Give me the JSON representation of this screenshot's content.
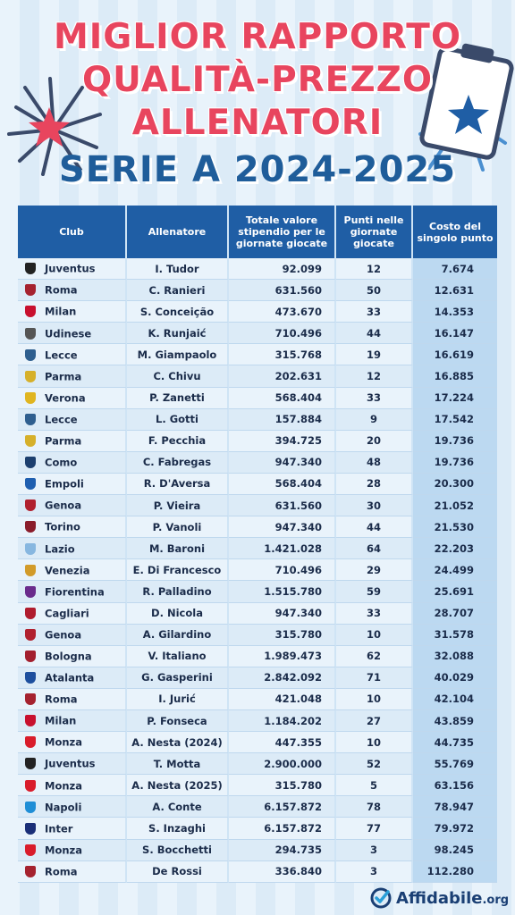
{
  "title": {
    "line1": "Miglior rapporto",
    "line2": "qualità-prezzo",
    "line3": "allenatori",
    "subtitle": "SERIE A 2024-2025"
  },
  "table": {
    "headers": {
      "club": "Club",
      "coach": "Allenatore",
      "value": "Totale valore stipendio per le giornate giocate",
      "points": "Punti nelle giornate giocate",
      "cost": "Costo del singolo punto"
    },
    "rows": [
      {
        "club": "Juventus",
        "coach": "I. Tudor",
        "value": "92.099",
        "points": "12",
        "cost": "7.674",
        "crest_color": "#222222"
      },
      {
        "club": "Roma",
        "coach": "C. Ranieri",
        "value": "631.560",
        "points": "50",
        "cost": "12.631",
        "crest_color": "#a5222f"
      },
      {
        "club": "Milan",
        "coach": "S. Conceição",
        "value": "473.670",
        "points": "33",
        "cost": "14.353",
        "crest_color": "#c8102e"
      },
      {
        "club": "Udinese",
        "coach": "K. Runjaić",
        "value": "710.496",
        "points": "44",
        "cost": "16.147",
        "crest_color": "#555555"
      },
      {
        "club": "Lecce",
        "coach": "M. Giampaolo",
        "value": "315.768",
        "points": "19",
        "cost": "16.619",
        "crest_color": "#2f5f8f"
      },
      {
        "club": "Parma",
        "coach": "C. Chivu",
        "value": "202.631",
        "points": "12",
        "cost": "16.885",
        "crest_color": "#d6b02a"
      },
      {
        "club": "Verona",
        "coach": "P. Zanetti",
        "value": "568.404",
        "points": "33",
        "cost": "17.224",
        "crest_color": "#e0b520"
      },
      {
        "club": "Lecce",
        "coach": "L. Gotti",
        "value": "157.884",
        "points": "9",
        "cost": "17.542",
        "crest_color": "#2f5f8f"
      },
      {
        "club": "Parma",
        "coach": "F. Pecchia",
        "value": "394.725",
        "points": "20",
        "cost": "19.736",
        "crest_color": "#d6b02a"
      },
      {
        "club": "Como",
        "coach": "C. Fabregas",
        "value": "947.340",
        "points": "48",
        "cost": "19.736",
        "crest_color": "#1c3f6e"
      },
      {
        "club": "Empoli",
        "coach": "R. D'Aversa",
        "value": "568.404",
        "points": "28",
        "cost": "20.300",
        "crest_color": "#1f5fb0"
      },
      {
        "club": "Genoa",
        "coach": "P. Vieira",
        "value": "631.560",
        "points": "30",
        "cost": "21.052",
        "crest_color": "#b0202e"
      },
      {
        "club": "Torino",
        "coach": "P. Vanoli",
        "value": "947.340",
        "points": "44",
        "cost": "21.530",
        "crest_color": "#8a1c2b"
      },
      {
        "club": "Lazio",
        "coach": "M. Baroni",
        "value": "1.421.028",
        "points": "64",
        "cost": "22.203",
        "crest_color": "#87b7e0"
      },
      {
        "club": "Venezia",
        "coach": "E. Di Francesco",
        "value": "710.496",
        "points": "29",
        "cost": "24.499",
        "crest_color": "#d29b2a"
      },
      {
        "club": "Fiorentina",
        "coach": "R. Palladino",
        "value": "1.515.780",
        "points": "59",
        "cost": "25.691",
        "crest_color": "#6a2b8c"
      },
      {
        "club": "Cagliari",
        "coach": "D. Nicola",
        "value": "947.340",
        "points": "33",
        "cost": "28.707",
        "crest_color": "#b01c2e"
      },
      {
        "club": "Genoa",
        "coach": "A. Gilardino",
        "value": "315.780",
        "points": "10",
        "cost": "31.578",
        "crest_color": "#b0202e"
      },
      {
        "club": "Bologna",
        "coach": "V. Italiano",
        "value": "1.989.473",
        "points": "62",
        "cost": "32.088",
        "crest_color": "#a31f2e"
      },
      {
        "club": "Atalanta",
        "coach": "G. Gasperini",
        "value": "2.842.092",
        "points": "71",
        "cost": "40.029",
        "crest_color": "#1d4f9e"
      },
      {
        "club": "Roma",
        "coach": "I. Jurić",
        "value": "421.048",
        "points": "10",
        "cost": "42.104",
        "crest_color": "#a5222f"
      },
      {
        "club": "Milan",
        "coach": "P. Fonseca",
        "value": "1.184.202",
        "points": "27",
        "cost": "43.859",
        "crest_color": "#c8102e"
      },
      {
        "club": "Monza",
        "coach": "A. Nesta (2024)",
        "value": "447.355",
        "points": "10",
        "cost": "44.735",
        "crest_color": "#d91c2b"
      },
      {
        "club": "Juventus",
        "coach": "T. Motta",
        "value": "2.900.000",
        "points": "52",
        "cost": "55.769",
        "crest_color": "#222222"
      },
      {
        "club": "Monza",
        "coach": "A. Nesta (2025)",
        "value": "315.780",
        "points": "5",
        "cost": "63.156",
        "crest_color": "#d91c2b"
      },
      {
        "club": "Napoli",
        "coach": "A. Conte",
        "value": "6.157.872",
        "points": "78",
        "cost": "78.947",
        "crest_color": "#1f8ed6"
      },
      {
        "club": "Inter",
        "coach": "S. Inzaghi",
        "value": "6.157.872",
        "points": "77",
        "cost": "79.972",
        "crest_color": "#1a2f78"
      },
      {
        "club": "Monza",
        "coach": "S. Bocchetti",
        "value": "294.735",
        "points": "3",
        "cost": "98.245",
        "crest_color": "#d91c2b"
      },
      {
        "club": "Roma",
        "coach": "De Rossi",
        "value": "336.840",
        "points": "3",
        "cost": "112.280",
        "crest_color": "#a5222f"
      }
    ]
  },
  "footer": {
    "brand": "Affidabile",
    "suffix": ".org"
  },
  "colors": {
    "title_red": "#e8455e",
    "subtitle_blue": "#1f5d9a",
    "header_blue": "#1f5ea5"
  }
}
